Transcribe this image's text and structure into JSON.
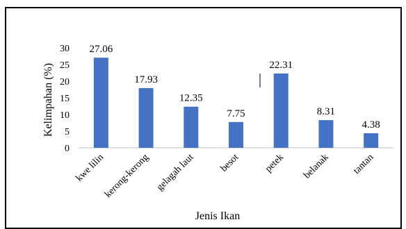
{
  "chart_data": {
    "type": "bar",
    "categories": [
      "kwe lilin",
      "kerong-kerong",
      "gelagah laut",
      "besot",
      "petek",
      "belanak",
      "tantan"
    ],
    "values": [
      27.06,
      17.93,
      12.35,
      7.75,
      22.31,
      8.31,
      4.38
    ],
    "data_labels": [
      "27.06",
      "17.93",
      "12.35",
      "7.75",
      "22.31",
      "8.31",
      "4.38"
    ],
    "xlabel": "Jenis Ikan",
    "ylabel": "Kelimpahan (%)",
    "ylim": [
      0,
      30
    ],
    "yticks": [
      0,
      5,
      10,
      15,
      20,
      25,
      30
    ],
    "grid": false,
    "legend": "none",
    "bar_color": "#4472C4"
  }
}
